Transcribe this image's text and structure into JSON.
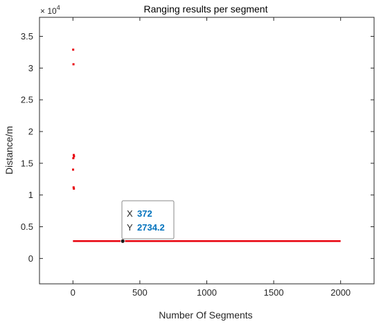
{
  "chart_data": {
    "type": "scatter",
    "title": "Ranging results per segment",
    "xlabel": "Number Of Segments",
    "ylabel": "Distance/m",
    "xlim": [
      -250,
      2250
    ],
    "ylim": [
      -4000,
      38000
    ],
    "y_exponent_label": "× 10",
    "y_exponent_power": "4",
    "x_ticks": [
      0,
      500,
      1000,
      1500,
      2000
    ],
    "x_tick_labels": [
      "0",
      "500",
      "1000",
      "1500",
      "2000"
    ],
    "y_ticks": [
      0,
      5000,
      10000,
      15000,
      20000,
      25000,
      30000,
      35000
    ],
    "y_tick_labels": [
      "0",
      "0.5",
      "1",
      "1.5",
      "2",
      "2.5",
      "3",
      "3.5"
    ],
    "grid": false,
    "series_color": "#e8000b",
    "line_segment": {
      "x": [
        0,
        2000
      ],
      "y": [
        2734.2,
        2734.2
      ]
    },
    "points": [
      {
        "x": 2,
        "y": 32900
      },
      {
        "x": 4,
        "y": 30600
      },
      {
        "x": 6,
        "y": 16300
      },
      {
        "x": 8,
        "y": 16100
      },
      {
        "x": 3,
        "y": 15800
      },
      {
        "x": 1,
        "y": 14000
      },
      {
        "x": 5,
        "y": 11200
      },
      {
        "x": 7,
        "y": 11000
      }
    ],
    "datatip": {
      "x_key": "X",
      "x_value": "372",
      "y_key": "Y",
      "y_value": "2734.2",
      "point_x": 372,
      "point_y": 2734.2,
      "value_color": "#0072bd"
    }
  }
}
